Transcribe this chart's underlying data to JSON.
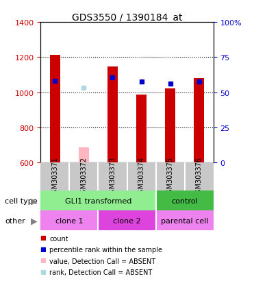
{
  "title": "GDS3550 / 1390184_at",
  "samples": [
    "GSM303371",
    "GSM303372",
    "GSM303373",
    "GSM303374",
    "GSM303375",
    "GSM303376"
  ],
  "count_values": [
    1215,
    null,
    1145,
    985,
    1020,
    1080
  ],
  "count_absent": [
    null,
    685,
    null,
    null,
    null,
    null
  ],
  "percentile_values": [
    1065,
    null,
    1085,
    1060,
    1050,
    1060
  ],
  "percentile_absent": [
    null,
    1025,
    null,
    null,
    null,
    null
  ],
  "ylim": [
    600,
    1400
  ],
  "y2lim": [
    0,
    100
  ],
  "yticks": [
    600,
    800,
    1000,
    1200,
    1400
  ],
  "y2ticks": [
    0,
    25,
    50,
    75,
    100
  ],
  "y2ticklabels": [
    "0",
    "25",
    "50",
    "75",
    "100%"
  ],
  "bar_width": 0.35,
  "red_color": "#CC0000",
  "blue_color": "#0000CC",
  "pink_color": "#FFB6C1",
  "lightblue_color": "#ADD8E6",
  "gray_bg": "#C8C8C8",
  "cell_type_light_green": "#90EE90",
  "cell_type_dark_green": "#44BB44",
  "clone1_color": "#EE82EE",
  "clone2_color": "#DD44DD",
  "parental_color": "#EE82EE",
  "legend_items": [
    {
      "color": "#CC0000",
      "label": "count"
    },
    {
      "color": "#0000CC",
      "label": "percentile rank within the sample"
    },
    {
      "color": "#FFB6C1",
      "label": "value, Detection Call = ABSENT"
    },
    {
      "color": "#ADD8E6",
      "label": "rank, Detection Call = ABSENT"
    }
  ]
}
